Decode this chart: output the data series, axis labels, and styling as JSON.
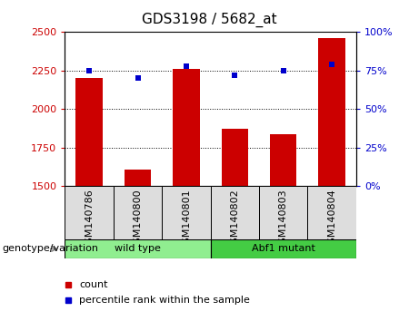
{
  "title": "GDS3198 / 5682_at",
  "samples": [
    "GSM140786",
    "GSM140800",
    "GSM140801",
    "GSM140802",
    "GSM140803",
    "GSM140804"
  ],
  "counts": [
    2200,
    1610,
    2260,
    1870,
    1840,
    2460
  ],
  "percentiles": [
    75,
    70,
    78,
    72,
    75,
    79
  ],
  "groups": [
    {
      "label": "wild type",
      "indices": [
        0,
        1,
        2
      ],
      "color": "#90EE90"
    },
    {
      "label": "Abf1 mutant",
      "indices": [
        3,
        4,
        5
      ],
      "color": "#44CC44"
    }
  ],
  "ylim_left": [
    1500,
    2500
  ],
  "ylim_right": [
    0,
    100
  ],
  "yticks_left": [
    1500,
    1750,
    2000,
    2250,
    2500
  ],
  "yticks_right": [
    0,
    25,
    50,
    75,
    100
  ],
  "bar_color": "#CC0000",
  "marker_color": "#0000CC",
  "marker_size": 5,
  "grid_color": "black",
  "legend_count_label": "count",
  "legend_pct_label": "percentile rank within the sample",
  "title_fontsize": 11,
  "tick_fontsize": 8,
  "label_fontsize": 8,
  "group_fontsize": 8
}
